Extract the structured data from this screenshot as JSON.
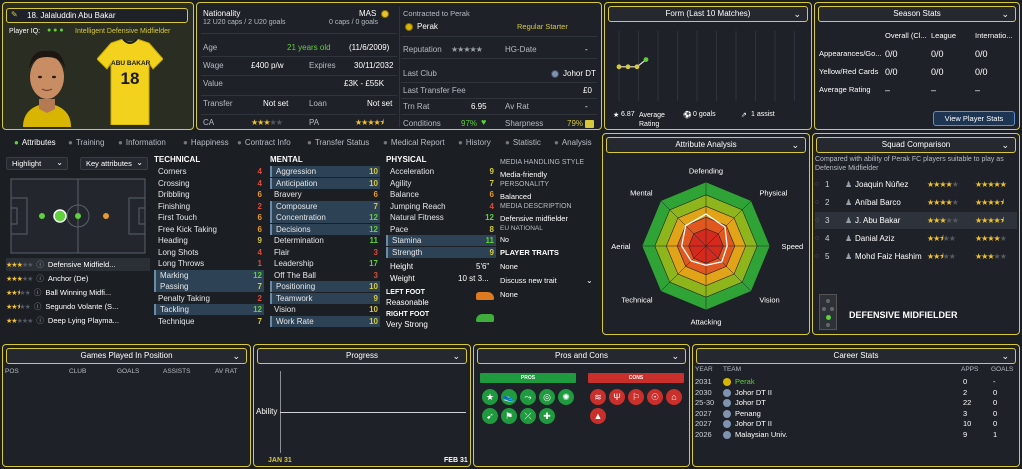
{
  "profile": {
    "name": "18. Jalaluddin Abu Bakar",
    "player_iq_label": "Player IQ:",
    "role_line": "Intelligent Defensive Midfielder",
    "shirt_name": "ABU BAKAR",
    "shirt_number": "18"
  },
  "info": {
    "nationality_label": "Nationality",
    "nationality_value": "MAS",
    "caps_left": "12 U20 caps / 2 U20 goals",
    "caps_right": "0 caps / 0 goals",
    "age_label": "Age",
    "age_value": "21 years old",
    "dob": "(11/6/2009)",
    "wage_label": "Wage",
    "wage_value": "£400 p/w",
    "expires_label": "Expires",
    "expires_value": "30/11/2032",
    "value_label": "Value",
    "value_value": "£3K - £55K",
    "transfer_label": "Transfer",
    "transfer_value": "Not set",
    "loan_label": "Loan",
    "loan_value": "Not set",
    "ca_label": "CA",
    "ca_stars": 3,
    "pa_label": "PA",
    "pa_stars": 4.5
  },
  "contract": {
    "contracted_label": "Contracted to Perak",
    "club": "Perak",
    "status": "Regular Starter",
    "reputation_label": "Reputation",
    "reputation_stars": 5,
    "hg_label": "HG-Date",
    "hg_value": "-",
    "last_club_label": "Last Club",
    "last_club_value": "Johor DT",
    "last_fee_label": "Last Transfer Fee",
    "last_fee_value": "£0",
    "trn_rat_label": "Trn Rat",
    "trn_rat_value": "6.95",
    "av_rat_label": "Av Rat",
    "av_rat_value": "-",
    "conditions_label": "Conditions",
    "conditions_value": "97%",
    "sharpness_label": "Sharpness",
    "sharpness_value": "79%"
  },
  "form": {
    "title": "Form (Last 10 Matches)",
    "avg_rating_value": "6.87",
    "avg_rating_label": "Average Rating",
    "goals": "0 goals",
    "assists": "1 assist",
    "points": [
      6.9,
      6.9,
      6.9,
      7.3
    ]
  },
  "season": {
    "title": "Season Stats",
    "cols": [
      "Overall (Cl...",
      "League",
      "Internatio..."
    ],
    "rows": [
      {
        "label": "Appearances/Go...",
        "vals": [
          "0/0",
          "0/0",
          "0/0"
        ]
      },
      {
        "label": "Yellow/Red Cards",
        "vals": [
          "0/0",
          "0/0",
          "0/0"
        ]
      },
      {
        "label": "Average Rating",
        "vals": [
          "–",
          "–",
          "–"
        ]
      }
    ],
    "button": "View Player Stats"
  },
  "tabs": [
    "Attributes",
    "Training",
    "Information",
    "Happiness",
    "Contract Info",
    "Transfer Status",
    "Medical Report",
    "History",
    "Statistic",
    "Analysis"
  ],
  "left": {
    "highlight": "Highlight",
    "key_attributes": "Key attributes",
    "roles": [
      {
        "stars": 3,
        "label": "Defensive Midfield..."
      },
      {
        "stars": 3,
        "label": "Anchor (De)"
      },
      {
        "stars": 2.5,
        "label": "Ball Winning Midfi..."
      },
      {
        "stars": 2.5,
        "label": "Segundo Volante (S..."
      },
      {
        "stars": 2,
        "label": "Deep Lying Playma..."
      }
    ]
  },
  "attributes": {
    "technical_title": "TECHNICAL",
    "mental_title": "MENTAL",
    "physical_title": "PHYSICAL",
    "technical": [
      {
        "n": "Corners",
        "v": "4",
        "c": "red",
        "h": false
      },
      {
        "n": "Crossing",
        "v": "4",
        "c": "red",
        "h": false
      },
      {
        "n": "Dribbling",
        "v": "6",
        "c": "org",
        "h": false
      },
      {
        "n": "Finishing",
        "v": "2",
        "c": "red",
        "h": false
      },
      {
        "n": "First Touch",
        "v": "6",
        "c": "org",
        "h": false
      },
      {
        "n": "Free Kick Taking",
        "v": "6",
        "c": "org",
        "h": false
      },
      {
        "n": "Heading",
        "v": "9",
        "c": "yel",
        "h": false
      },
      {
        "n": "Long Shots",
        "v": "4",
        "c": "red",
        "h": false
      },
      {
        "n": "Long Throws",
        "v": "1",
        "c": "red",
        "h": false
      },
      {
        "n": "Marking",
        "v": "12",
        "c": "grn",
        "h": true
      },
      {
        "n": "Passing",
        "v": "7",
        "c": "yel",
        "h": true
      },
      {
        "n": "Penalty Taking",
        "v": "2",
        "c": "red",
        "h": false
      },
      {
        "n": "Tackling",
        "v": "12",
        "c": "grn",
        "h": true
      },
      {
        "n": "Technique",
        "v": "7",
        "c": "yel",
        "h": false
      }
    ],
    "mental": [
      {
        "n": "Aggression",
        "v": "10",
        "c": "yel",
        "h": true
      },
      {
        "n": "Anticipation",
        "v": "10",
        "c": "yel",
        "h": true
      },
      {
        "n": "Bravery",
        "v": "6",
        "c": "org",
        "h": false
      },
      {
        "n": "Composure",
        "v": "7",
        "c": "yel",
        "h": true
      },
      {
        "n": "Concentration",
        "v": "12",
        "c": "grn",
        "h": true
      },
      {
        "n": "Decisions",
        "v": "12",
        "c": "grn",
        "h": true
      },
      {
        "n": "Determination",
        "v": "11",
        "c": "grn",
        "h": false
      },
      {
        "n": "Flair",
        "v": "3",
        "c": "red",
        "h": false
      },
      {
        "n": "Leadership",
        "v": "17",
        "c": "grn",
        "h": false
      },
      {
        "n": "Off The Ball",
        "v": "3",
        "c": "red",
        "h": false
      },
      {
        "n": "Positioning",
        "v": "10",
        "c": "yel",
        "h": true
      },
      {
        "n": "Teamwork",
        "v": "9",
        "c": "yel",
        "h": true
      },
      {
        "n": "Vision",
        "v": "10",
        "c": "yel",
        "h": false
      },
      {
        "n": "Work Rate",
        "v": "10",
        "c": "yel",
        "h": true
      }
    ],
    "physical": [
      {
        "n": "Acceleration",
        "v": "9",
        "c": "yel",
        "h": false
      },
      {
        "n": "Agility",
        "v": "7",
        "c": "yel",
        "h": false
      },
      {
        "n": "Balance",
        "v": "6",
        "c": "org",
        "h": false
      },
      {
        "n": "Jumping Reach",
        "v": "4",
        "c": "red",
        "h": false
      },
      {
        "n": "Natural Fitness",
        "v": "12",
        "c": "grn",
        "h": false
      },
      {
        "n": "Pace",
        "v": "8",
        "c": "yel",
        "h": false
      },
      {
        "n": "Stamina",
        "v": "11",
        "c": "grn",
        "h": true
      },
      {
        "n": "Strength",
        "v": "9",
        "c": "yel",
        "h": true
      }
    ],
    "height_label": "Height",
    "height_value": "5'6\"",
    "weight_label": "Weight",
    "weight_value": "10 st 3...",
    "left_foot_label": "LEFT FOOT",
    "left_foot_value": "Reasonable",
    "right_foot_label": "RIGHT FOOT",
    "right_foot_value": "Very Strong"
  },
  "media": {
    "style_title": "MEDIA HANDLING STYLE",
    "style_value": "Media-friendly",
    "personality_title": "PERSONALITY",
    "personality_value": "Balanced",
    "desc_title": "MEDIA DESCRIPTION",
    "desc_value": "Defensive midfielder",
    "eu_title": "EU NATIONAL",
    "eu_value": "No",
    "traits_title": "PLAYER TRAITS",
    "traits_value": "None",
    "discuss": "Discuss new trait",
    "discuss_value": "None"
  },
  "analysis": {
    "title": "Attribute Analysis",
    "axes": [
      "Defending",
      "Physical",
      "Speed",
      "Vision",
      "Attacking",
      "Technical",
      "Aerial",
      "Mental"
    ]
  },
  "squad": {
    "title": "Squad Comparison",
    "desc": "Compared with ability of Perak FC players suitable to play as Defensive Midfielder",
    "players": [
      {
        "rank": "1",
        "name": "Joaquin Núñez",
        "ca": 4,
        "pa": 5
      },
      {
        "rank": "2",
        "name": "Aníbal Barco",
        "ca": 4,
        "pa": 4.5
      },
      {
        "rank": "3",
        "name": "J. Abu Bakar",
        "ca": 3,
        "pa": 4.5
      },
      {
        "rank": "4",
        "name": "Danial Aziz",
        "ca": 2.5,
        "pa": 4
      },
      {
        "rank": "5",
        "name": "Mohd Faiz Hashim",
        "ca": 2.5,
        "pa": 3
      }
    ],
    "position": "DEFENSIVE MIDFIELDER"
  },
  "games": {
    "title": "Games Played In Position",
    "cols": [
      "POS",
      "CLUB",
      "GOALS",
      "ASSISTS",
      "AV RAT"
    ]
  },
  "progress": {
    "title": "Progress",
    "ylabel": "Ability",
    "x_start": "JAN 31",
    "x_end": "FEB 31"
  },
  "proscons": {
    "title": "Pros and Cons",
    "pros_label": "PROS",
    "cons_label": "CONS",
    "pro_icons": [
      "star-icon",
      "boot-icon",
      "pass-icon",
      "target-icon",
      "mind-icon",
      "whistle-icon",
      "foot-icon",
      "tackle-icon",
      "fitness-icon"
    ],
    "con_icons": [
      "spring-icon",
      "fork-icon",
      "flag-icon",
      "header-icon",
      "shoe-icon",
      "cone-icon"
    ],
    "pros_color": "#1f9a3f",
    "cons_color": "#c9302c"
  },
  "career": {
    "title": "Career Stats",
    "cols": [
      "YEAR",
      "TEAM",
      "APPS",
      "GOALS"
    ],
    "rows": [
      {
        "year": "2031",
        "team": "Perak",
        "apps": "0",
        "goals": "-",
        "current": true
      },
      {
        "year": "2030",
        "team": "Johor DT II",
        "apps": "2",
        "goals": "0",
        "current": false
      },
      {
        "year": "25-30",
        "team": "Johor DT",
        "apps": "22",
        "goals": "0",
        "current": false
      },
      {
        "year": "2027",
        "team": "Penang",
        "apps": "3",
        "goals": "0",
        "current": false
      },
      {
        "year": "2027",
        "team": "Johor DT II",
        "apps": "10",
        "goals": "0",
        "current": false
      },
      {
        "year": "2026",
        "team": "Malaysian Univ.",
        "apps": "9",
        "goals": "1",
        "current": false
      }
    ]
  },
  "colors": {
    "accent": "#d7c93a",
    "panel": "#1e2127",
    "highlight": "#2e4255"
  }
}
